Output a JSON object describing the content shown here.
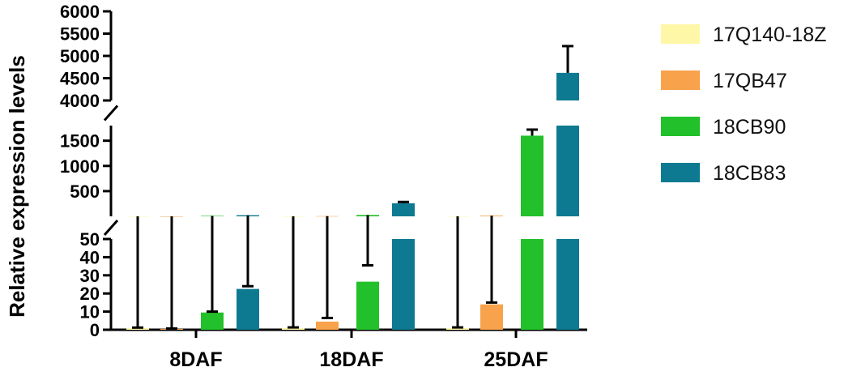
{
  "chart_data": {
    "type": "bar",
    "ylabel": "Relative expression levels",
    "xlabel": "",
    "title": "",
    "categories": [
      "8DAF",
      "18DAF",
      "25DAF"
    ],
    "series": [
      {
        "name": "17Q140-18Z",
        "color": "#FFF7A8",
        "values": [
          1,
          1,
          1
        ],
        "errors": [
          0.2,
          0.3,
          0.3
        ]
      },
      {
        "name": "17QB47",
        "color": "#F8A24B",
        "values": [
          0.5,
          4.5,
          14
        ],
        "errors": [
          0.2,
          2,
          1
        ]
      },
      {
        "name": "18CB90",
        "color": "#22C02A",
        "values": [
          9.5,
          26.5,
          1600
        ],
        "errors": [
          0.5,
          9,
          120
        ]
      },
      {
        "name": "18CB83",
        "color": "#0E7A91",
        "values": [
          22.5,
          260,
          4620
        ],
        "errors": [
          1.5,
          25,
          600
        ]
      }
    ],
    "y_segments": [
      {
        "range": [
          0,
          50
        ],
        "ticks": [
          0,
          10,
          20,
          30,
          40,
          50
        ]
      },
      {
        "range": [
          0,
          1800
        ],
        "ticks": [
          500,
          1000,
          1500
        ]
      },
      {
        "range": [
          4000,
          6000
        ],
        "ticks": [
          4000,
          4500,
          5000,
          5500,
          6000
        ]
      }
    ],
    "axis_breaks": true,
    "grid": false,
    "legend_position": "right"
  }
}
